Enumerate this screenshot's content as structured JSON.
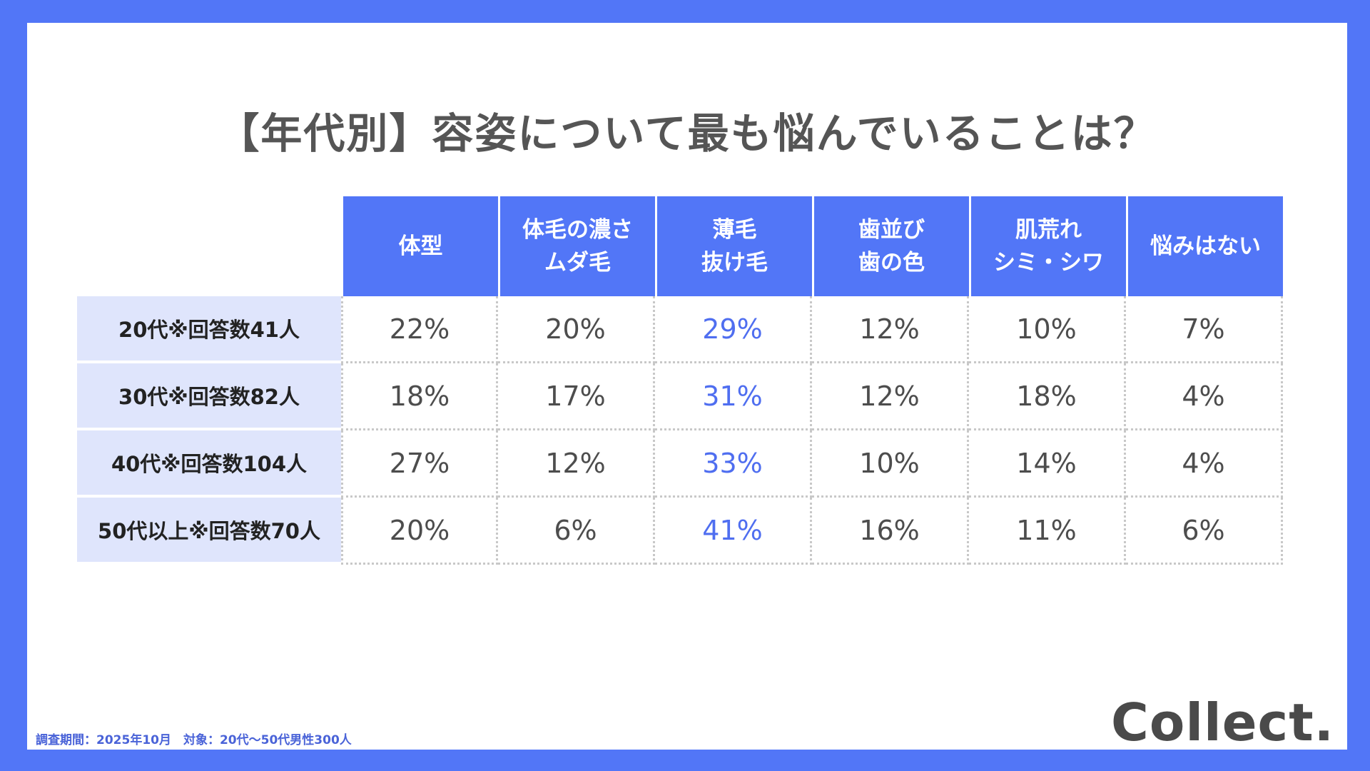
{
  "title": "【年代別】容姿について最も悩んでいることは？",
  "chart_data": {
    "type": "table",
    "title": "【年代別】容姿について最も悩んでいることは？",
    "columns": [
      {
        "lines": [
          "体型"
        ]
      },
      {
        "lines": [
          "体毛の濃さ",
          "ムダ毛"
        ]
      },
      {
        "lines": [
          "薄毛",
          "抜け毛"
        ]
      },
      {
        "lines": [
          "歯並び",
          "歯の色"
        ]
      },
      {
        "lines": [
          "肌荒れ",
          "シミ・シワ"
        ]
      },
      {
        "lines": [
          "悩みはない"
        ]
      }
    ],
    "rows": [
      {
        "label": "20代※回答数41人",
        "values": [
          "22%",
          "20%",
          "29%",
          "12%",
          "10%",
          "7%"
        ]
      },
      {
        "label": "30代※回答数82人",
        "values": [
          "18%",
          "17%",
          "31%",
          "12%",
          "18%",
          "4%"
        ]
      },
      {
        "label": "40代※回答数104人",
        "values": [
          "27%",
          "12%",
          "33%",
          "10%",
          "14%",
          "4%"
        ]
      },
      {
        "label": "50代以上※回答数70人",
        "values": [
          "20%",
          "6%",
          "41%",
          "16%",
          "11%",
          "6%"
        ]
      }
    ],
    "highlight_column": 2,
    "highlight_color": "#4f6ef0"
  },
  "footnote": "調査期間：2025年10月　対象：20代〜50代男性300人",
  "logo": "Collect.",
  "colors": {
    "background": "#5276f7",
    "header": "#5276f7",
    "row_label_bg": "#dfe5fc"
  }
}
